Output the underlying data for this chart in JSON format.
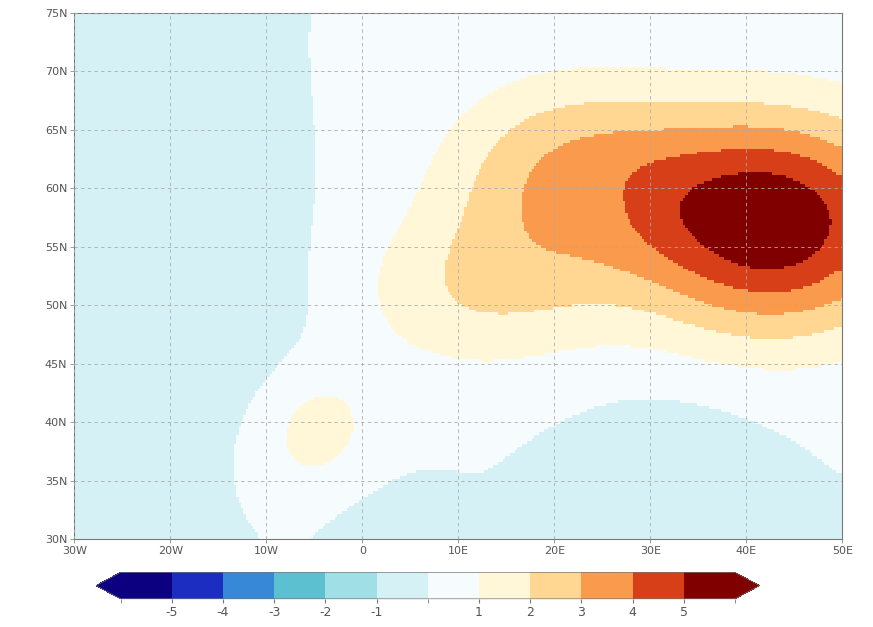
{
  "lon_min": -30,
  "lon_max": 50,
  "lat_min": 30,
  "lat_max": 75,
  "colorbar_levels": [
    -6,
    -5,
    -4,
    -3,
    -2,
    -1,
    0,
    1,
    2,
    3,
    4,
    5,
    6
  ],
  "colorbar_ticks": [
    -5,
    -4,
    -3,
    -2,
    -1,
    1,
    2,
    3,
    4,
    5
  ],
  "xticks": [
    -30,
    -20,
    -10,
    0,
    10,
    20,
    30,
    40,
    50
  ],
  "yticks": [
    30,
    35,
    40,
    45,
    50,
    55,
    60,
    65,
    70,
    75
  ],
  "background_color": "#ffffff",
  "grid_color": "#aaaaaa",
  "cmap_colors_r": [
    0.05,
    0.1,
    0.2,
    0.3,
    0.55,
    0.78,
    0.92,
    1.0,
    1.0,
    1.0,
    0.97,
    0.82,
    0.5
  ],
  "cmap_colors_g": [
    0.0,
    0.15,
    0.5,
    0.72,
    0.85,
    0.93,
    0.97,
    1.0,
    0.95,
    0.8,
    0.55,
    0.2,
    0.0
  ],
  "cmap_colors_b": [
    0.5,
    0.75,
    0.85,
    0.8,
    0.87,
    0.95,
    0.98,
    1.0,
    0.75,
    0.5,
    0.25,
    0.07,
    0.0
  ]
}
